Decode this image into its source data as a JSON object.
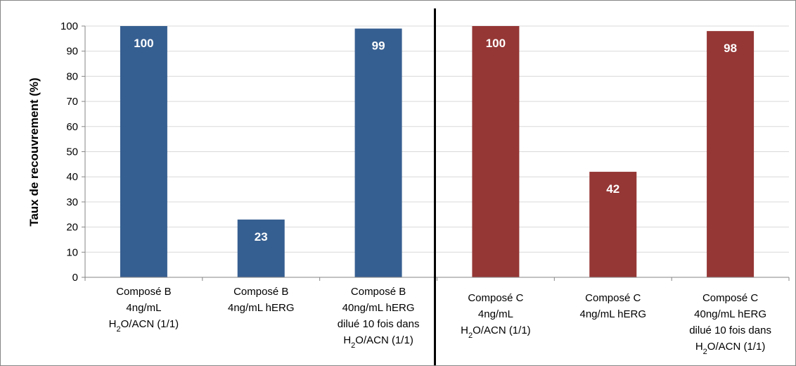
{
  "chart_data": {
    "type": "bar",
    "ylabel": "Taux de recouvrement (%)",
    "ylim": [
      0,
      100
    ],
    "yticks": [
      0,
      10,
      20,
      30,
      40,
      50,
      60,
      70,
      80,
      90,
      100
    ],
    "grid": true,
    "legend": "none",
    "categories": [
      {
        "lines": [
          [
            "Composé B"
          ],
          [
            "4ng/mL"
          ],
          [
            "H",
            {
              "sub": "2"
            },
            "O/ACN (1/1)"
          ]
        ]
      },
      {
        "lines": [
          [
            "Composé B"
          ],
          [
            "4ng/mL hERG"
          ]
        ]
      },
      {
        "lines": [
          [
            "Composé B"
          ],
          [
            "40ng/mL hERG"
          ],
          [
            "dilué 10 fois dans"
          ],
          [
            "H",
            {
              "sub": "2"
            },
            "O/ACN (1/1)"
          ]
        ]
      },
      {
        "lines": [
          [
            "Composé C"
          ],
          [
            "4ng/mL"
          ],
          [
            "H",
            {
              "sub": "2"
            },
            "O/ACN (1/1)"
          ]
        ]
      },
      {
        "lines": [
          [
            "Composé C"
          ],
          [
            "4ng/mL hERG"
          ]
        ]
      },
      {
        "lines": [
          [
            "Composé C"
          ],
          [
            "40ng/mL hERG"
          ],
          [
            "dilué 10 fois dans"
          ],
          [
            "H",
            {
              "sub": "2"
            },
            "O/ACN (1/1)"
          ]
        ]
      }
    ],
    "values": [
      100,
      23,
      99,
      100,
      42,
      98
    ],
    "data_labels": [
      "100",
      "23",
      "99",
      "100",
      "42",
      "98"
    ],
    "bar_colors": [
      "#365f91",
      "#365f91",
      "#365f91",
      "#953735",
      "#953735",
      "#953735"
    ],
    "label_color": "#ffffff",
    "gridline_color": "#d9d9d9",
    "separator": {
      "after_category_index": 2,
      "color": "#000000"
    }
  }
}
